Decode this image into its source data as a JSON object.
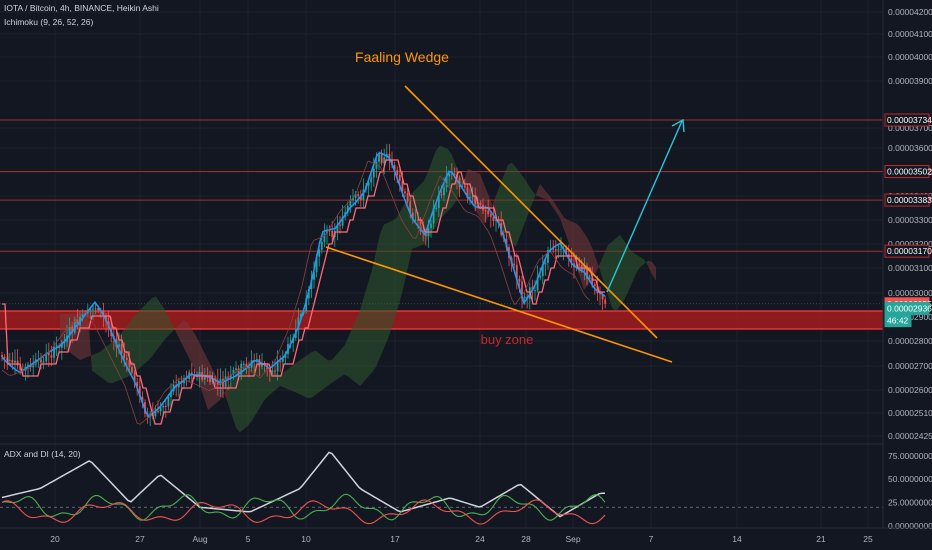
{
  "header": {
    "symbol_line": "IOTA / Bitcoin, 4h, BINANCE, Heikin Ashi",
    "indicator": "Ichimoku (9, 26, 52, 26)",
    "adx_label": "ADX and DI (14, 20)"
  },
  "annotations": {
    "pattern_label": "Faaling Wedge",
    "zone_label": "buy zone"
  },
  "colors": {
    "background": "#131722",
    "grid": "#1e222d",
    "bull_candle": "#26a69a",
    "bear_candle": "#ef5350",
    "conversion": "#2196f3",
    "base": "#ff6b7a",
    "cloud_bull": "#2e5a2e",
    "cloud_bear": "#7a3a3a",
    "wedge": "#ff9800",
    "target_arrow": "#26c6da",
    "zone": "#b71c1c",
    "level": "#a03030"
  },
  "chart_data": {
    "type": "candlestick",
    "price_axis": {
      "ticks": [
        "0.00004200",
        "0.00004100",
        "0.00004000",
        "0.00003900",
        "0.00003700",
        "0.00003600",
        "0.00003500",
        "0.00003400",
        "0.00003300",
        "0.00003200",
        "0.00003100",
        "0.00003000",
        "0.00002900",
        "0.00002800",
        "0.00002700",
        "0.00002600",
        "0.00002510",
        "0.00002425"
      ],
      "range": [
        2.425e-05,
        4.22e-05
      ]
    },
    "time_axis": {
      "ticks": [
        "20",
        "27",
        "Aug",
        "5",
        "10",
        "17",
        "24",
        "28",
        "Sep",
        "7",
        "14",
        "21",
        "25"
      ]
    },
    "price_tags": [
      {
        "label": "0.00003734",
        "value": 3.734e-05,
        "kind": "level"
      },
      {
        "label": "0.00003502",
        "value": 3.502e-05,
        "kind": "level"
      },
      {
        "label": "0.00003383",
        "value": 3.383e-05,
        "kind": "level"
      },
      {
        "label": "0.00003170",
        "value": 3.17e-05,
        "kind": "level"
      },
      {
        "label": "0.00002955",
        "value": 2.955e-05,
        "kind": "close"
      },
      {
        "label": "0.00002936",
        "value": 2.936e-05,
        "kind": "last"
      },
      {
        "label": "46:42",
        "value": 2.885e-05,
        "kind": "timer"
      }
    ],
    "buy_zone": [
      2.85e-05,
      2.925e-05
    ],
    "adx_axis": {
      "ticks": [
        "75.00000000",
        "50.00000000",
        "25.00000000",
        "0.00000000"
      ],
      "range": [
        0,
        78
      ],
      "threshold": 20
    }
  }
}
